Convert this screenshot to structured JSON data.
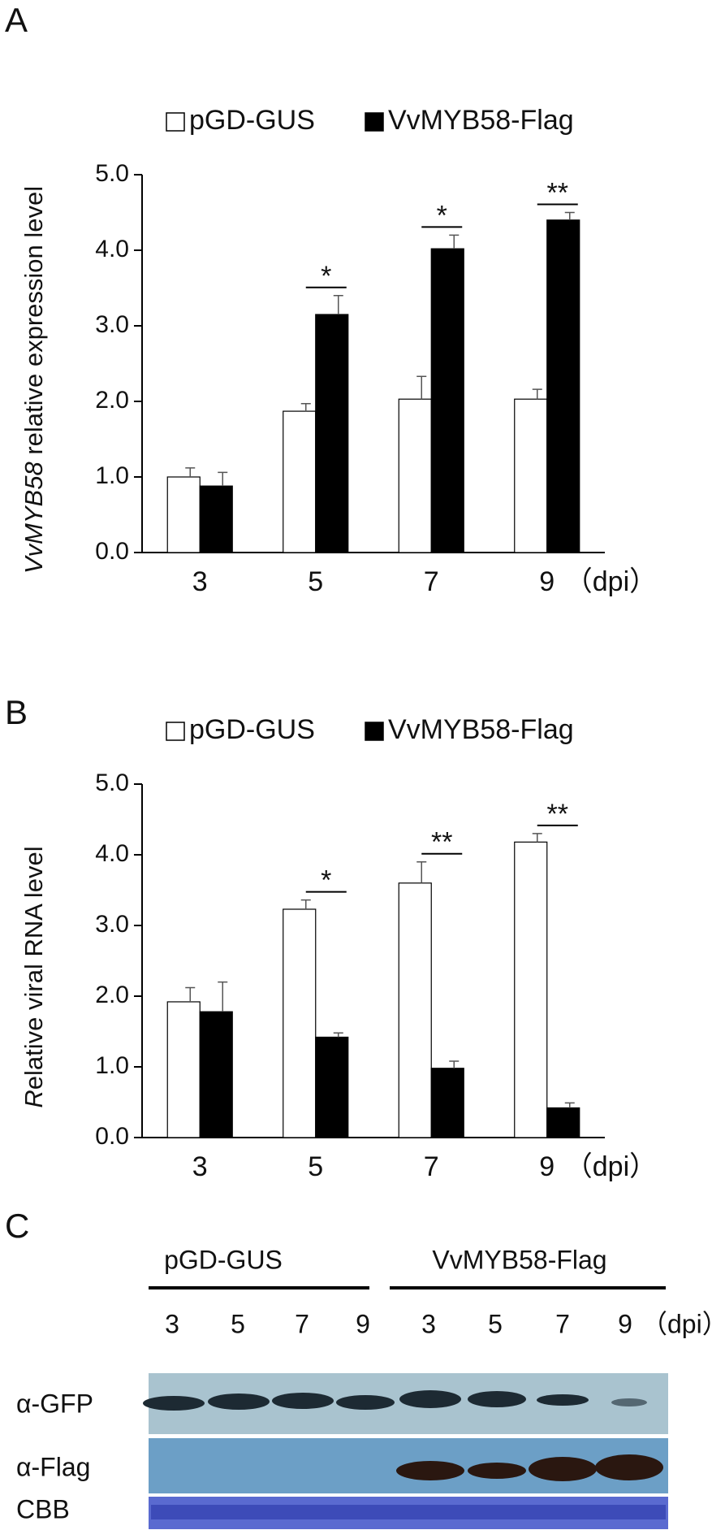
{
  "chart_data": [
    {
      "type": "bar",
      "panel": "A",
      "y_label": [
        "VvMYB58",
        " relative expression level"
      ],
      "categories": [
        "3",
        "5",
        "7",
        "9"
      ],
      "x_label": "（dpi）",
      "series": [
        {
          "name": "pGD-GUS",
          "color": "#ffffff",
          "values": [
            1.0,
            1.87,
            2.03,
            2.03
          ],
          "errors": [
            0.12,
            0.1,
            0.3,
            0.13
          ]
        },
        {
          "name": "VvMYB58-Flag",
          "color": "#000000",
          "values": [
            0.88,
            3.15,
            4.02,
            4.4
          ],
          "errors": [
            0.18,
            0.25,
            0.18,
            0.1
          ]
        }
      ],
      "significance": [
        null,
        "*",
        "*",
        "**"
      ],
      "ylim": [
        0,
        5
      ],
      "yticks": [
        {
          "value": 0,
          "label": "0.0"
        },
        {
          "value": 1,
          "label": "1.0"
        },
        {
          "value": 2,
          "label": "2.0"
        },
        {
          "value": 3,
          "label": "3.0"
        },
        {
          "value": 4,
          "label": "4.0"
        },
        {
          "value": 5,
          "label": "5.0"
        }
      ]
    },
    {
      "type": "bar",
      "panel": "B",
      "y_label": [
        "R",
        "elative viral RNA  level"
      ],
      "categories": [
        "3",
        "5",
        "7",
        "9"
      ],
      "x_label": "（dpi）",
      "series": [
        {
          "name": "pGD-GUS",
          "color": "#ffffff",
          "values": [
            1.92,
            3.23,
            3.6,
            4.18
          ],
          "errors": [
            0.2,
            0.13,
            0.3,
            0.12
          ]
        },
        {
          "name": "VvMYB58-Flag",
          "color": "#000000",
          "values": [
            1.78,
            1.42,
            0.98,
            0.42
          ],
          "errors": [
            0.42,
            0.06,
            0.1,
            0.07
          ]
        }
      ],
      "significance": [
        null,
        "*",
        "**",
        "**"
      ],
      "ylim": [
        0,
        5
      ],
      "yticks": [
        {
          "value": 0,
          "label": "0.0"
        },
        {
          "value": 1,
          "label": "1.0"
        },
        {
          "value": 2,
          "label": "2.0"
        },
        {
          "value": 3,
          "label": "3.0"
        },
        {
          "value": 4,
          "label": "4.0"
        },
        {
          "value": 5,
          "label": "5.0"
        }
      ]
    }
  ],
  "blot": {
    "panel": "C",
    "groups": [
      "pGD-GUS",
      "VvMYB58-Flag"
    ],
    "lanes": [
      "3",
      "5",
      "7",
      "9",
      "3",
      "5",
      "7",
      "9"
    ],
    "unit": "（dpi）",
    "rows": [
      "α-GFP",
      "α-Flag",
      "CBB"
    ]
  }
}
